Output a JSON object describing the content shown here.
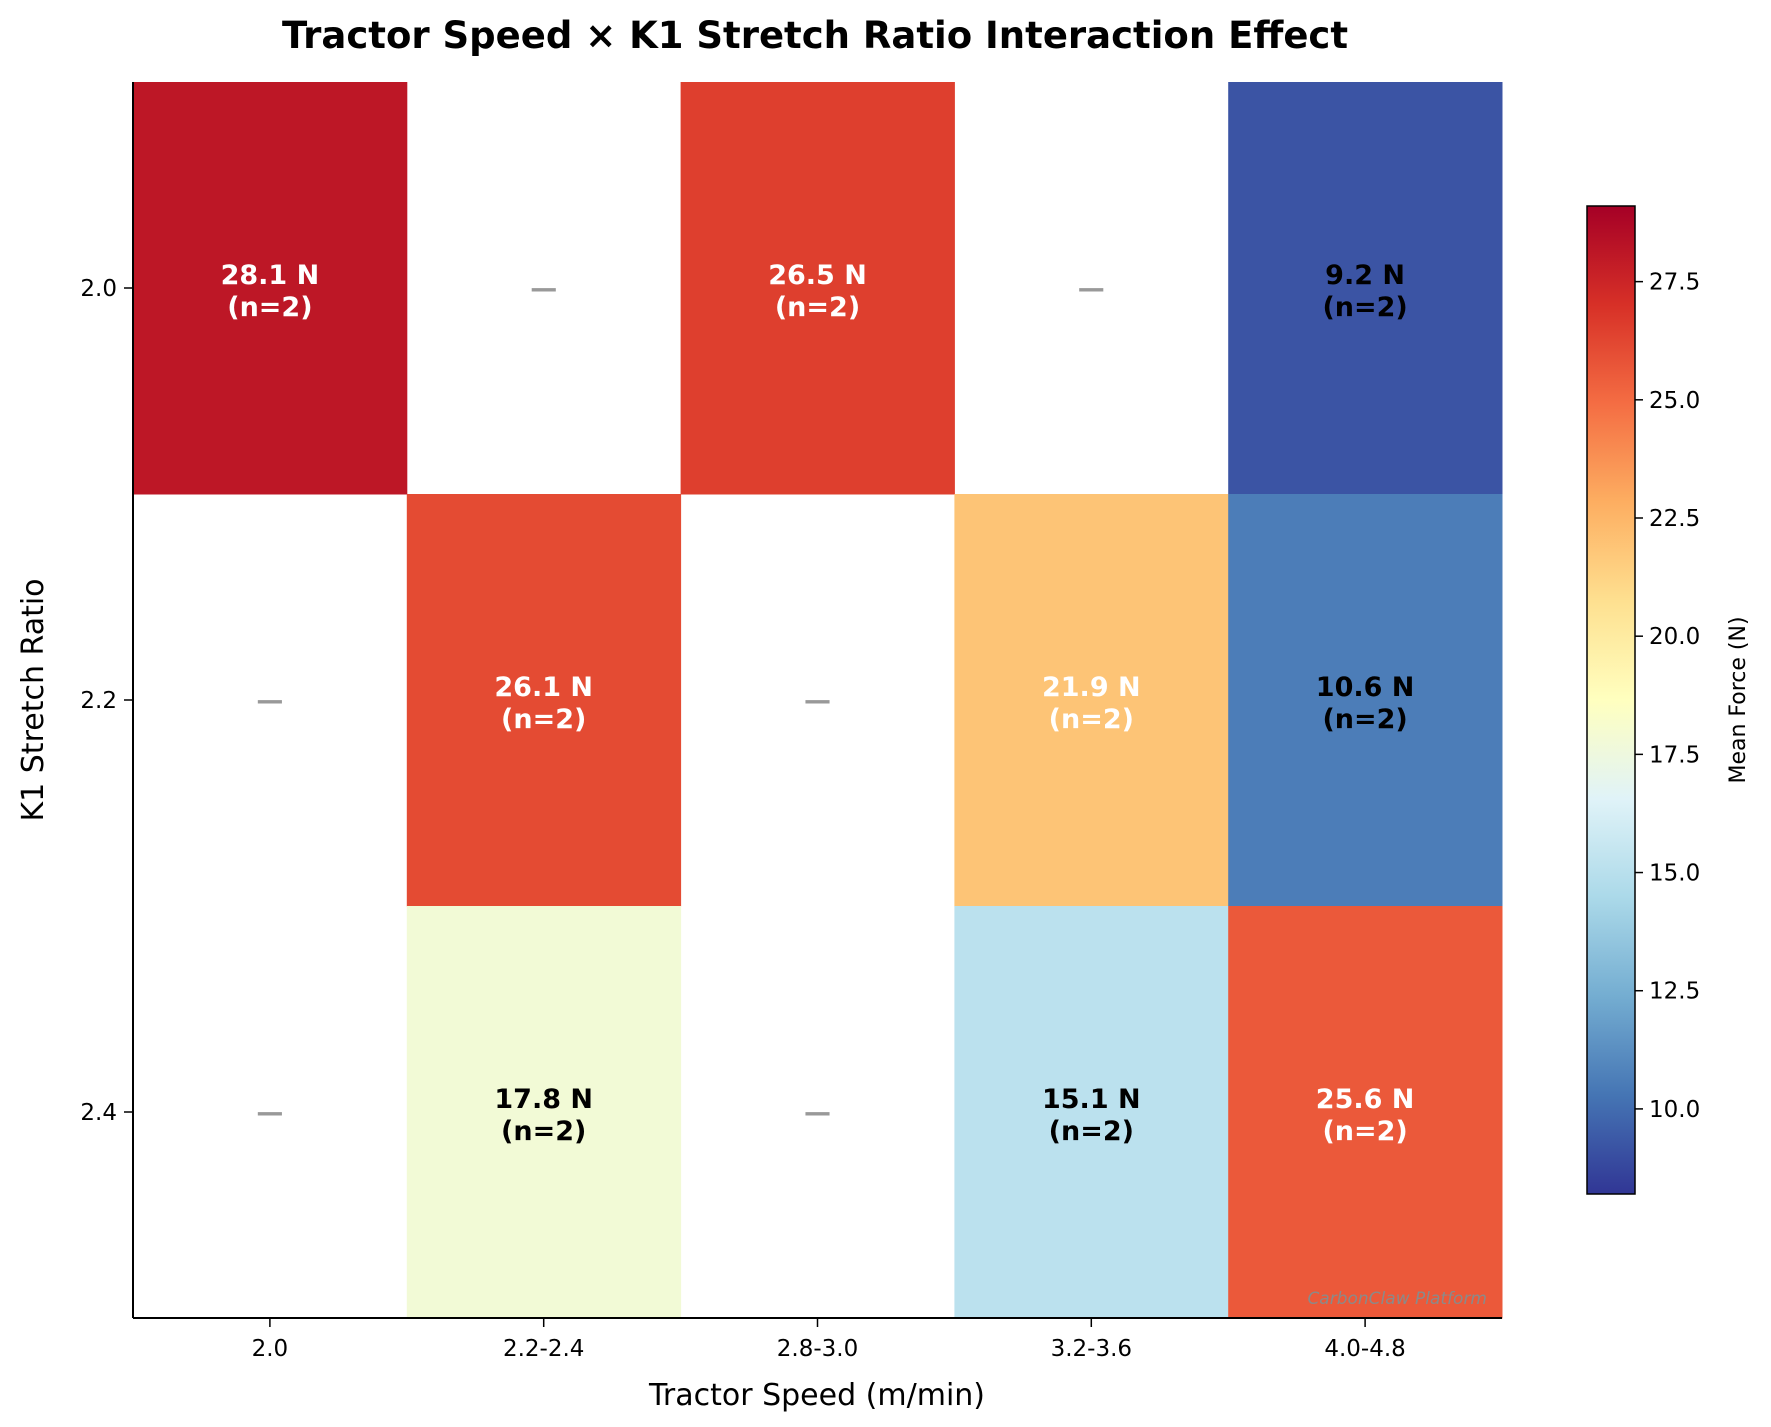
{
  "chart_data": {
    "type": "heatmap",
    "title": "Tractor Speed × K1 Stretch Ratio Interaction Effect",
    "xlabel": "Tractor Speed (m/min)",
    "ylabel": "K1 Stretch Ratio",
    "x_categories": [
      "2.0",
      "2.2-2.4",
      "2.8-3.0",
      "3.2-3.6",
      "4.0-4.8"
    ],
    "y_categories": [
      "2.0",
      "2.2",
      "2.4"
    ],
    "cells": [
      [
        {
          "value": 28.1,
          "n": 2,
          "label": "28.1 N",
          "n_label": "(n=2)"
        },
        {
          "value": null,
          "label": "—"
        },
        {
          "value": 26.5,
          "n": 2,
          "label": "26.5 N",
          "n_label": "(n=2)"
        },
        {
          "value": null,
          "label": "—"
        },
        {
          "value": 9.2,
          "n": 2,
          "label": "9.2 N",
          "n_label": "(n=2)"
        }
      ],
      [
        {
          "value": null,
          "label": "—"
        },
        {
          "value": 26.1,
          "n": 2,
          "label": "26.1 N",
          "n_label": "(n=2)"
        },
        {
          "value": null,
          "label": "—"
        },
        {
          "value": 21.9,
          "n": 2,
          "label": "21.9 N",
          "n_label": "(n=2)"
        },
        {
          "value": 10.6,
          "n": 2,
          "label": "10.6 N",
          "n_label": "(n=2)"
        }
      ],
      [
        {
          "value": null,
          "label": "—"
        },
        {
          "value": 17.8,
          "n": 2,
          "label": "17.8 N",
          "n_label": "(n=2)"
        },
        {
          "value": null,
          "label": "—"
        },
        {
          "value": 15.1,
          "n": 2,
          "label": "15.1 N",
          "n_label": "(n=2)"
        },
        {
          "value": 25.6,
          "n": 2,
          "label": "25.6 N",
          "n_label": "(n=2)"
        }
      ]
    ],
    "colormap": "RdYlBu_r",
    "colorbar": {
      "label": "Mean Force (N)",
      "vmin": 8.2,
      "vmax": 29.1,
      "ticks": [
        "10.0",
        "12.5",
        "15.0",
        "17.5",
        "20.0",
        "22.5",
        "25.0",
        "27.5"
      ]
    },
    "watermark": "CarbonClaw Platform"
  }
}
